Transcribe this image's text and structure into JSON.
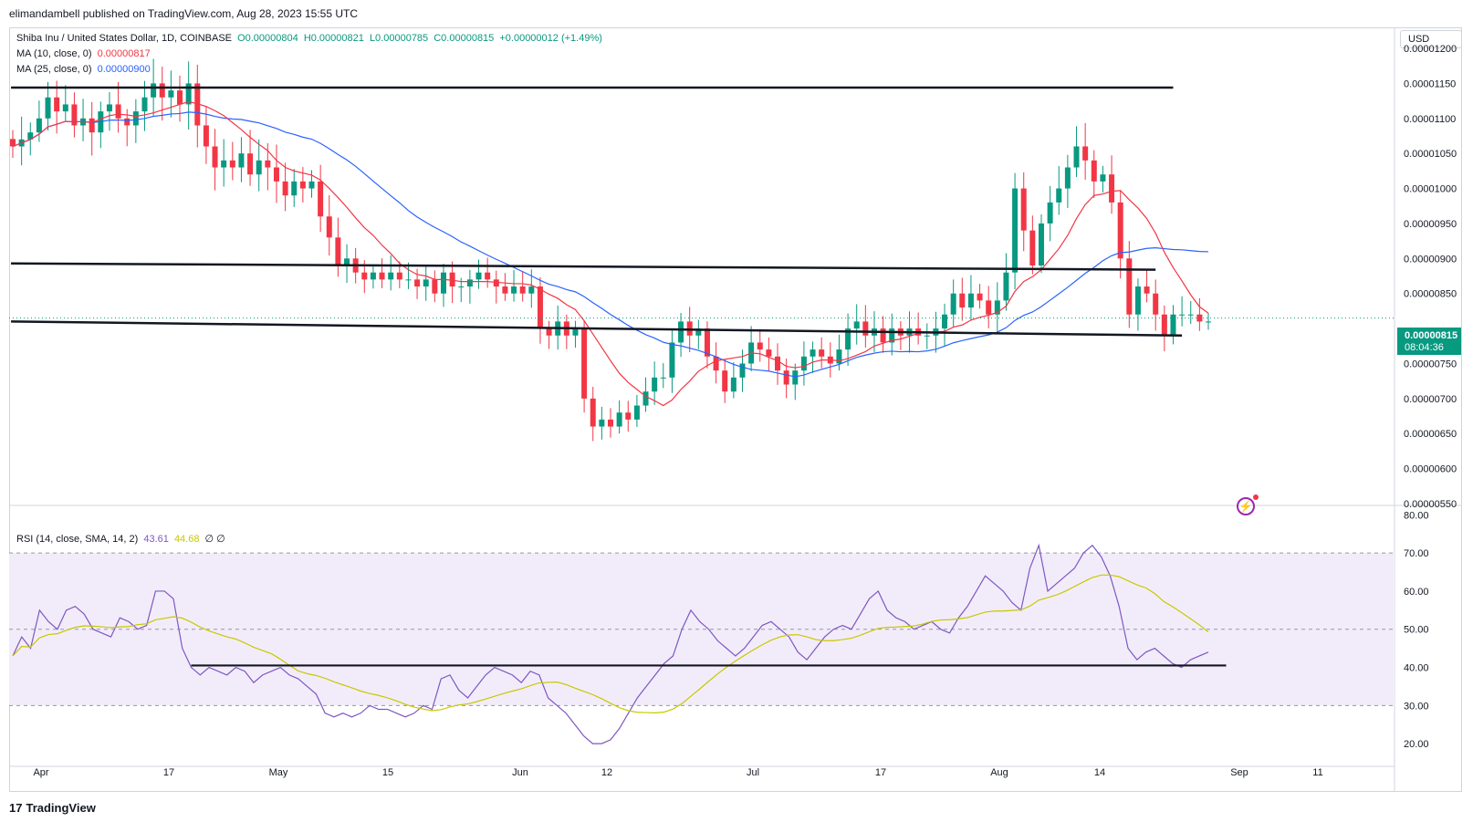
{
  "header": {
    "publisher": "elimandambell published on TradingView.com, Aug 28, 2023 15:55 UTC"
  },
  "legend": {
    "symbol": "Shiba Inu / United States Dollar, 1D, COINBASE",
    "open": "O0.00000804",
    "high": "H0.00000821",
    "low": "L0.00000785",
    "close": "C0.00000815",
    "change": "+0.00000012 (+1.49%)",
    "ma10_label": "MA (10, close, 0)",
    "ma10_value": "0.00000817",
    "ma25_label": "MA (25, close, 0)",
    "ma25_value": "0.00000900",
    "rsi_label": "RSI (14, close, SMA, 14, 2)",
    "rsi_value": "43.61",
    "rsi_sma_value": "44.68",
    "rsi_extra": "∅ ∅"
  },
  "currency_button": "USD",
  "last_price": {
    "price": "0.00000815",
    "countdown": "08:04:36"
  },
  "footer": {
    "brand": "TradingView",
    "logo_mark": "17"
  },
  "colors": {
    "up": "#089981",
    "down": "#f23645",
    "ma10": "#f23645",
    "ma25": "#2962ff",
    "rsi": "#7e57c2",
    "rsi_sma": "#c8c800",
    "rsi_band": "#f2ecfa",
    "trendline": "#131722"
  },
  "chart_data": [
    {
      "type": "candlestick",
      "title": "Shiba Inu / United States Dollar, 1D, COINBASE",
      "ylim": [
        5.5e-06,
        1.23e-05
      ],
      "y_ticks": [
        "0.00001200",
        "0.00001150",
        "0.00001100",
        "0.00001050",
        "0.00001000",
        "0.00000950",
        "0.00000900",
        "0.00000850",
        "0.00000750",
        "0.00000700",
        "0.00000650",
        "0.00000600",
        "0.00000550"
      ],
      "x_ticks": [
        "Apr",
        "17",
        "May",
        "15",
        "Jun",
        "12",
        "Jul",
        "17",
        "Aug",
        "14",
        "Sep",
        "11"
      ],
      "series": [
        {
          "name": "MA (10, close, 0)"
        },
        {
          "name": "MA (25, close, 0)"
        }
      ],
      "close_series_approx": [
        1.06e-05,
        1.07e-05,
        1.08e-05,
        1.1e-05,
        1.13e-05,
        1.11e-05,
        1.12e-05,
        1.09e-05,
        1.1e-05,
        1.08e-05,
        1.11e-05,
        1.12e-05,
        1.1e-05,
        1.09e-05,
        1.11e-05,
        1.13e-05,
        1.15e-05,
        1.13e-05,
        1.14e-05,
        1.12e-05,
        1.15e-05,
        1.09e-05,
        1.06e-05,
        1.03e-05,
        1.04e-05,
        1.03e-05,
        1.05e-05,
        1.02e-05,
        1.04e-05,
        1.03e-05,
        1.01e-05,
        9.9e-06,
        1.01e-05,
        1e-05,
        1.01e-05,
        9.6e-06,
        9.3e-06,
        8.9e-06,
        9e-06,
        8.8e-06,
        8.7e-06,
        8.8e-06,
        8.7e-06,
        8.8e-06,
        8.7e-06,
        8.7e-06,
        8.6e-06,
        8.7e-06,
        8.5e-06,
        8.8e-06,
        8.6e-06,
        8.6e-06,
        8.7e-06,
        8.8e-06,
        8.7e-06,
        8.6e-06,
        8.5e-06,
        8.6e-06,
        8.5e-06,
        8.6e-06,
        8e-06,
        7.9e-06,
        8.1e-06,
        7.9e-06,
        8e-06,
        7e-06,
        6.6e-06,
        6.7e-06,
        6.6e-06,
        6.8e-06,
        6.7e-06,
        6.9e-06,
        7.1e-06,
        7.3e-06,
        7.3e-06,
        7.8e-06,
        8.1e-06,
        7.9e-06,
        8e-06,
        7.6e-06,
        7.4e-06,
        7.1e-06,
        7.3e-06,
        7.5e-06,
        7.8e-06,
        7.7e-06,
        7.6e-06,
        7.4e-06,
        7.2e-06,
        7.4e-06,
        7.6e-06,
        7.7e-06,
        7.6e-06,
        7.5e-06,
        7.7e-06,
        8e-06,
        8.1e-06,
        7.9e-06,
        8e-06,
        7.8e-06,
        8e-06,
        7.9e-06,
        8e-06,
        7.9e-06,
        7.9e-06,
        8e-06,
        8.2e-06,
        8.5e-06,
        8.3e-06,
        8.5e-06,
        8.4e-06,
        8.2e-06,
        8.4e-06,
        8.8e-06,
        1e-05,
        9.4e-06,
        8.9e-06,
        9.5e-06,
        9.8e-06,
        1e-05,
        1.03e-05,
        1.06e-05,
        1.04e-05,
        1.01e-05,
        1.02e-05,
        9.8e-06,
        9e-06,
        8.2e-06,
        8.6e-06,
        8.5e-06,
        8.2e-06,
        7.9e-06,
        8.2e-06,
        8.2e-06,
        8.2e-06,
        8.1e-06,
        8.1e-06
      ]
    },
    {
      "type": "line",
      "title": "RSI (14, close, SMA, 14, 2)",
      "ylim": [
        15,
        82
      ],
      "y_ticks": [
        "80.00",
        "70.00",
        "60.00",
        "50.00",
        "40.00",
        "30.00",
        "20.00"
      ],
      "band": [
        30,
        70
      ],
      "midline": 50,
      "series": [
        {
          "name": "RSI"
        },
        {
          "name": "SMA"
        }
      ],
      "rsi_values_approx": [
        43,
        48,
        45,
        55,
        52,
        50,
        55,
        56,
        54,
        50,
        49,
        48,
        53,
        52,
        50,
        51,
        60,
        60,
        58,
        45,
        40,
        38,
        40,
        39,
        38,
        40,
        39,
        36,
        38,
        39,
        40,
        38,
        37,
        35,
        33,
        28,
        27,
        28,
        27,
        28,
        30,
        29,
        29,
        28,
        27,
        28,
        30,
        29,
        37,
        38,
        34,
        32,
        35,
        38,
        40,
        39,
        38,
        36,
        39,
        38,
        32,
        30,
        28,
        25,
        22,
        20,
        20,
        21,
        24,
        28,
        32,
        35,
        38,
        41,
        43,
        50,
        55,
        52,
        50,
        47,
        45,
        43,
        45,
        48,
        51,
        52,
        50,
        48,
        44,
        42,
        45,
        48,
        50,
        51,
        50,
        54,
        58,
        60,
        55,
        53,
        52,
        50,
        51,
        52,
        50,
        49,
        53,
        56,
        60,
        64,
        62,
        60,
        57,
        55,
        66,
        72,
        60,
        62,
        64,
        66,
        70,
        72,
        69,
        64,
        56,
        45,
        42,
        44,
        45,
        43,
        41,
        40,
        42,
        43,
        44
      ]
    }
  ]
}
